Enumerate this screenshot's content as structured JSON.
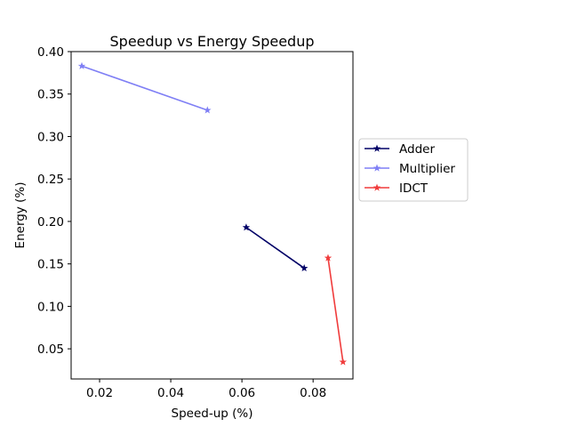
{
  "chart_data": {
    "type": "line",
    "title": "Speedup vs Energy Speedup",
    "xlabel": "Speed-up (%)",
    "ylabel": "Energy (%)",
    "xlim": [
      0.012,
      0.0912
    ],
    "ylim": [
      0.0145,
      0.4
    ],
    "xticks": [
      0.02,
      0.04,
      0.06,
      0.08
    ],
    "xtick_labels": [
      "0.02",
      "0.04",
      "0.06",
      "0.08"
    ],
    "yticks": [
      0.05,
      0.1,
      0.15,
      0.2,
      0.25,
      0.3,
      0.35,
      0.4
    ],
    "ytick_labels": [
      "0.05",
      "0.10",
      "0.15",
      "0.20",
      "0.25",
      "0.30",
      "0.35",
      "0.40"
    ],
    "grid": false,
    "legend_position": "outside-right",
    "marker": "star",
    "series": [
      {
        "name": "Adder",
        "color": "#000066",
        "x": [
          0.0612,
          0.0775
        ],
        "y": [
          0.193,
          0.145
        ]
      },
      {
        "name": "Multiplier",
        "color": "#7f7ff5",
        "x": [
          0.015,
          0.0503
        ],
        "y": [
          0.383,
          0.331
        ]
      },
      {
        "name": "IDCT",
        "color": "#f03c3c",
        "x": [
          0.0842,
          0.0884
        ],
        "y": [
          0.157,
          0.0345
        ]
      }
    ]
  }
}
